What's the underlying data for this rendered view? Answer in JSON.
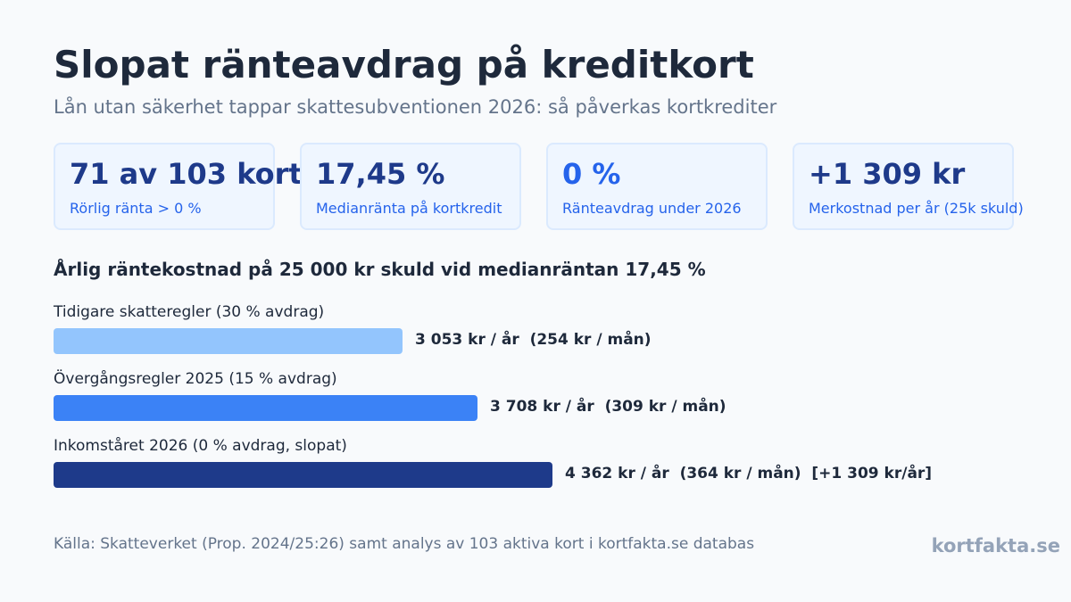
{
  "header": {
    "title": "Slopat ränteavdrag på kreditkort",
    "subtitle": "Lån utan säkerhet tappar skattesubventionen 2026: så påverkas kortkrediter"
  },
  "kpis": [
    {
      "value": "71 av 103 kort",
      "label": "Rörlig ränta > 0 %",
      "color": "#1e3a8a"
    },
    {
      "value": "17,45 %",
      "label": "Medianränta på kortkredit",
      "color": "#1e3a8a"
    },
    {
      "value": "0 %",
      "label": "Ränteavdrag under 2026",
      "color": "#2563eb"
    },
    {
      "value": "+1 309 kr",
      "label": "Merkostnad per år (25k skuld)",
      "color": "#1e3a8a"
    }
  ],
  "chart_data": {
    "type": "bar",
    "orientation": "horizontal",
    "title": "Årlig räntekostnad på 25 000 kr skuld vid medianräntan 17,45 %",
    "categories": [
      "Tidigare skatteregler (30 % avdrag)",
      "Övergångsregler 2025 (15 % avdrag)",
      "Inkomståret 2026 (0 % avdrag, slopat)"
    ],
    "values": [
      3053,
      3708,
      4362
    ],
    "unit": "kr / år",
    "data_labels": [
      "3 053 kr / år  (254 kr / mån)",
      "3 708 kr / år  (309 kr / mån)",
      "4 362 kr / år  (364 kr / mån)  [+1 309 kr/år]"
    ],
    "colors": [
      "#93c5fd",
      "#3b82f6",
      "#1e3a8a"
    ],
    "xlim": [
      0,
      4362
    ]
  },
  "footer": {
    "source": "Källa: Skatteverket (Prop. 2024/25:26) samt analys av 103 aktiva kort i kortfakta.se databas",
    "brand": "kortfakta.se"
  }
}
